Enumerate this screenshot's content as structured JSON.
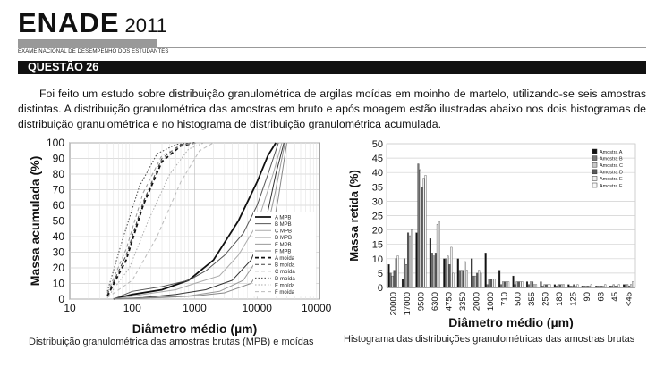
{
  "header": {
    "brand": "ENADE",
    "year": "2011",
    "subtitle": "EXAME NACIONAL DE DESEMPENHO DOS ESTUDANTES"
  },
  "question": {
    "title": "QUESTÃO 26",
    "text": "Foi feito um estudo sobre distribuição granulométrica de argilas moídas em moinho de martelo, utilizando-se seis amostras distintas. A distribuição granulométrica das amostras em bruto e após moagem estão ilustradas abaixo nos dois histogramas de distribuição granulométrica e no histograma de distribuição granulométrica acumulada."
  },
  "chart_data": [
    {
      "type": "line",
      "xlabel": "Diâmetro médio (µm)",
      "ylabel": "Massa acumulada (%)",
      "x_scale": "log",
      "xlim": [
        10,
        100000
      ],
      "ylim": [
        0,
        100
      ],
      "x_ticks": [
        "10",
        "100",
        "1000",
        "10000",
        "100000"
      ],
      "y_ticks": [
        "0",
        "10",
        "20",
        "30",
        "40",
        "50",
        "60",
        "70",
        "80",
        "90",
        "100"
      ],
      "grid": true,
      "legend_position": "right",
      "series": [
        {
          "name": "A MPB",
          "style": "solid-bold",
          "color": "#111111",
          "x": [
            50,
            100,
            300,
            800,
            2000,
            5000,
            10000,
            15000,
            20000
          ],
          "y": [
            0,
            3,
            6,
            12,
            25,
            50,
            75,
            92,
            100
          ]
        },
        {
          "name": "B MPB",
          "style": "solid",
          "color": "#555555",
          "x": [
            50,
            100,
            300,
            800,
            1500,
            3000,
            6000,
            10000,
            15000,
            22000
          ],
          "y": [
            0,
            5,
            8,
            12,
            18,
            28,
            42,
            60,
            80,
            100
          ]
        },
        {
          "name": "C MPB",
          "style": "solid",
          "color": "#aaaaaa",
          "x": [
            50,
            150,
            500,
            1000,
            2500,
            5000,
            10000,
            18000,
            25000
          ],
          "y": [
            0,
            3,
            6,
            10,
            15,
            28,
            48,
            80,
            100
          ]
        },
        {
          "name": "D MPB",
          "style": "solid",
          "color": "#333333",
          "x": [
            50,
            150,
            500,
            1500,
            4000,
            8000,
            13000,
            20000,
            27000
          ],
          "y": [
            0,
            1,
            3,
            6,
            12,
            25,
            45,
            80,
            100
          ]
        },
        {
          "name": "E MPB",
          "style": "solid",
          "color": "#999999",
          "x": [
            50,
            200,
            800,
            2500,
            6000,
            12000,
            20000,
            28000
          ],
          "y": [
            0,
            1,
            2,
            5,
            12,
            30,
            70,
            100
          ]
        },
        {
          "name": "F MPB",
          "style": "solid",
          "color": "#888888",
          "x": [
            50,
            300,
            1000,
            3000,
            8000,
            15000,
            22000,
            30000
          ],
          "y": [
            0,
            1,
            2,
            4,
            10,
            28,
            65,
            100
          ]
        },
        {
          "name": "A moída",
          "style": "dash-bold",
          "color": "#111111",
          "x": [
            40,
            80,
            150,
            300,
            600,
            1000
          ],
          "y": [
            2,
            25,
            60,
            88,
            98,
            100
          ]
        },
        {
          "name": "B moída",
          "style": "dash",
          "color": "#444444",
          "x": [
            40,
            80,
            150,
            300,
            600,
            1000
          ],
          "y": [
            3,
            28,
            62,
            90,
            99,
            100
          ]
        },
        {
          "name": "C moída",
          "style": "dash",
          "color": "#999999",
          "x": [
            40,
            80,
            150,
            300,
            700,
            1100
          ],
          "y": [
            4,
            32,
            68,
            92,
            99,
            100
          ]
        },
        {
          "name": "D moída",
          "style": "dot",
          "color": "#444444",
          "x": [
            40,
            70,
            130,
            250,
            500,
            900
          ],
          "y": [
            5,
            38,
            72,
            93,
            99,
            100
          ]
        },
        {
          "name": "E moída",
          "style": "dot",
          "color": "#aaaaaa",
          "x": [
            40,
            90,
            180,
            400,
            800,
            1400
          ],
          "y": [
            1,
            20,
            50,
            80,
            96,
            100
          ]
        },
        {
          "name": "F moída",
          "style": "dash",
          "color": "#bbbbbb",
          "x": [
            40,
            100,
            250,
            600,
            1200,
            2000
          ],
          "y": [
            1,
            12,
            40,
            75,
            95,
            100
          ]
        }
      ]
    },
    {
      "type": "bar",
      "xlabel": "Diâmetro médio (µm)",
      "ylabel": "Massa retida (%)",
      "ylim": [
        0,
        50
      ],
      "y_ticks": [
        "0",
        "5",
        "10",
        "15",
        "20",
        "25",
        "30",
        "35",
        "40",
        "45",
        "50"
      ],
      "grid": true,
      "legend_position": "top-right",
      "categories": [
        "20000",
        "17000",
        "9500",
        "6300",
        "4750",
        "3350",
        "2000",
        "1000",
        "710",
        "500",
        "355",
        "250",
        "180",
        "125",
        "90",
        "63",
        "45",
        "<45"
      ],
      "series": [
        {
          "name": "Amostra A",
          "color": "#111111",
          "values": [
            8,
            3,
            19,
            17,
            10,
            10,
            10,
            12,
            6,
            4,
            2,
            2,
            1,
            1,
            0.5,
            0.5,
            0.5,
            1
          ]
        },
        {
          "name": "Amostra B",
          "color": "#777777",
          "values": [
            5,
            10,
            43,
            12,
            10,
            6,
            4,
            1,
            1,
            1,
            1,
            0.5,
            0.5,
            0.5,
            0.5,
            0.5,
            0.5,
            1
          ]
        },
        {
          "name": "Amostra C",
          "color": "#c8c8c8",
          "values": [
            4,
            8,
            41,
            11,
            11,
            6,
            4,
            3,
            2,
            2,
            2,
            1,
            1,
            0.5,
            0.5,
            0.5,
            1,
            1
          ]
        },
        {
          "name": "Amostra D",
          "color": "#5a5a5a",
          "values": [
            6,
            19,
            35,
            12,
            8,
            6,
            5,
            3,
            2,
            2,
            2,
            1,
            1,
            1,
            0.5,
            0.5,
            0.5,
            0.5
          ]
        },
        {
          "name": "Amostra E",
          "color": "#eeeeee",
          "values": [
            10,
            18,
            38,
            22,
            14,
            9,
            6,
            3,
            2,
            2,
            1,
            1,
            1,
            0.5,
            0.5,
            0.5,
            0.5,
            1
          ]
        },
        {
          "name": "Amostra F",
          "color": "#f8f8f8",
          "values": [
            11,
            20,
            39,
            23,
            5,
            6,
            5,
            3,
            2,
            2,
            1,
            1,
            1,
            1,
            1,
            1,
            1,
            2
          ]
        }
      ]
    }
  ],
  "captions": {
    "left": "Distribuição granulométrica das amostras brutas (MPB) e moídas",
    "right": "Histograma das distribuições granulométricas das amostras brutas"
  }
}
